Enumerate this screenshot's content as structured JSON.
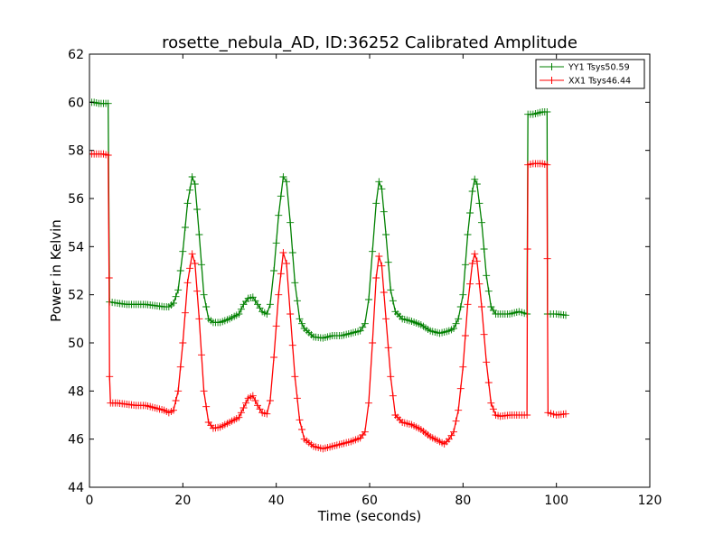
{
  "chart_data": {
    "type": "line",
    "title": "rosette_nebula_AD, ID:36252 Calibrated Amplitude",
    "xlabel": "Time (seconds)",
    "ylabel": "Power in Kelvin",
    "xlim": [
      0,
      120
    ],
    "ylim": [
      44,
      62
    ],
    "xticks": [
      0,
      20,
      40,
      60,
      80,
      100,
      120
    ],
    "yticks": [
      44,
      46,
      48,
      50,
      52,
      54,
      56,
      58,
      60,
      62
    ],
    "xtick_labels": [
      "0",
      "20",
      "40",
      "60",
      "80",
      "100",
      "120"
    ],
    "ytick_labels": [
      "44",
      "46",
      "48",
      "50",
      "52",
      "54",
      "56",
      "58",
      "60",
      "62"
    ],
    "grid": false,
    "legend_position": "top-right",
    "marker": "plus",
    "series": [
      {
        "name": "YY1 Tsys50.59",
        "color": "#008000",
        "segments": [
          [
            [
              0,
              60.0
            ],
            [
              1,
              60.0
            ],
            [
              2,
              59.95
            ],
            [
              3,
              59.95
            ],
            [
              4,
              59.95
            ],
            [
              4.3,
              51.7
            ],
            [
              6,
              51.65
            ],
            [
              8,
              51.6
            ],
            [
              10,
              51.6
            ],
            [
              12,
              51.6
            ],
            [
              14,
              51.55
            ],
            [
              16,
              51.5
            ],
            [
              17,
              51.5
            ],
            [
              18,
              51.65
            ],
            [
              19,
              52.2
            ],
            [
              20,
              53.8
            ],
            [
              21,
              55.8
            ],
            [
              22,
              56.9
            ],
            [
              22.6,
              56.6
            ],
            [
              23.5,
              54.5
            ],
            [
              24.5,
              52.0
            ],
            [
              25.5,
              51.0
            ],
            [
              26.5,
              50.85
            ],
            [
              28,
              50.85
            ],
            [
              30,
              51.0
            ],
            [
              32,
              51.2
            ],
            [
              33,
              51.6
            ],
            [
              34,
              51.85
            ],
            [
              35,
              51.9
            ],
            [
              36,
              51.6
            ],
            [
              37,
              51.3
            ],
            [
              38,
              51.2
            ],
            [
              38.7,
              51.6
            ],
            [
              39.5,
              53.0
            ],
            [
              40.5,
              55.3
            ],
            [
              41.5,
              56.9
            ],
            [
              42.2,
              56.7
            ],
            [
              43,
              55.0
            ],
            [
              44,
              52.5
            ],
            [
              45,
              51.0
            ],
            [
              46,
              50.6
            ],
            [
              48,
              50.25
            ],
            [
              50,
              50.2
            ],
            [
              52,
              50.3
            ],
            [
              54,
              50.3
            ],
            [
              56,
              50.4
            ],
            [
              58,
              50.5
            ],
            [
              59,
              50.8
            ],
            [
              59.8,
              51.8
            ],
            [
              60.6,
              53.8
            ],
            [
              61.4,
              55.8
            ],
            [
              62,
              56.7
            ],
            [
              62.6,
              56.4
            ],
            [
              63.5,
              54.5
            ],
            [
              64.5,
              52.2
            ],
            [
              65.5,
              51.3
            ],
            [
              67,
              51.0
            ],
            [
              69,
              50.9
            ],
            [
              71,
              50.75
            ],
            [
              73,
              50.5
            ],
            [
              75,
              50.4
            ],
            [
              77,
              50.5
            ],
            [
              78,
              50.6
            ],
            [
              79,
              51.0
            ],
            [
              80,
              52.0
            ],
            [
              81,
              54.5
            ],
            [
              82,
              56.3
            ],
            [
              82.5,
              56.8
            ],
            [
              83,
              56.6
            ],
            [
              84,
              55.0
            ],
            [
              85,
              52.8
            ],
            [
              86,
              51.5
            ],
            [
              87,
              51.2
            ],
            [
              88,
              51.2
            ],
            [
              90,
              51.2
            ],
            [
              92,
              51.3
            ],
            [
              93.7,
              51.2
            ],
            [
              93.9,
              59.5
            ],
            [
              95,
              59.5
            ],
            [
              97,
              59.6
            ],
            [
              98,
              59.6
            ],
            [
              98.1,
              51.2
            ],
            [
              100,
              51.2
            ],
            [
              102,
              51.15
            ]
          ]
        ]
      },
      {
        "name": "XX1 Tsys46.44",
        "color": "#ff0000",
        "segments": [
          [
            [
              0,
              57.85
            ],
            [
              1,
              57.85
            ],
            [
              2,
              57.85
            ],
            [
              3,
              57.85
            ],
            [
              4,
              57.8
            ],
            [
              4.2,
              52.7
            ],
            [
              4.3,
              48.6
            ],
            [
              4.5,
              47.5
            ],
            [
              6,
              47.5
            ],
            [
              8,
              47.45
            ],
            [
              10,
              47.4
            ],
            [
              12,
              47.4
            ],
            [
              14,
              47.3
            ],
            [
              16,
              47.2
            ],
            [
              17,
              47.1
            ],
            [
              18,
              47.2
            ],
            [
              19,
              48.0
            ],
            [
              20,
              50.0
            ],
            [
              21,
              52.5
            ],
            [
              22,
              53.7
            ],
            [
              22.6,
              53.3
            ],
            [
              23.5,
              51.0
            ],
            [
              24.5,
              48.0
            ],
            [
              25.5,
              46.7
            ],
            [
              26.5,
              46.45
            ],
            [
              28,
              46.5
            ],
            [
              30,
              46.7
            ],
            [
              32,
              46.9
            ],
            [
              33,
              47.3
            ],
            [
              34,
              47.7
            ],
            [
              35,
              47.8
            ],
            [
              36,
              47.4
            ],
            [
              37,
              47.1
            ],
            [
              38,
              47.05
            ],
            [
              38.7,
              47.6
            ],
            [
              39.5,
              49.4
            ],
            [
              40.5,
              52.0
            ],
            [
              41.5,
              53.75
            ],
            [
              42.2,
              53.3
            ],
            [
              43,
              51.2
            ],
            [
              44,
              48.6
            ],
            [
              45,
              46.8
            ],
            [
              46,
              46.0
            ],
            [
              48,
              45.7
            ],
            [
              50,
              45.6
            ],
            [
              52,
              45.7
            ],
            [
              54,
              45.8
            ],
            [
              56,
              45.9
            ],
            [
              58,
              46.05
            ],
            [
              59,
              46.3
            ],
            [
              59.8,
              47.5
            ],
            [
              60.6,
              50.0
            ],
            [
              61.4,
              52.7
            ],
            [
              62,
              53.6
            ],
            [
              62.6,
              53.2
            ],
            [
              63.5,
              51.0
            ],
            [
              64.5,
              48.6
            ],
            [
              65.5,
              47.0
            ],
            [
              67,
              46.7
            ],
            [
              69,
              46.6
            ],
            [
              71,
              46.4
            ],
            [
              73,
              46.1
            ],
            [
              75,
              45.9
            ],
            [
              76,
              45.8
            ],
            [
              77,
              46.0
            ],
            [
              78,
              46.3
            ],
            [
              79,
              47.2
            ],
            [
              80,
              49.0
            ],
            [
              81,
              51.6
            ],
            [
              82,
              53.3
            ],
            [
              82.5,
              53.7
            ],
            [
              83,
              53.4
            ],
            [
              84,
              51.5
            ],
            [
              85,
              49.2
            ],
            [
              86,
              47.5
            ],
            [
              87,
              47.0
            ],
            [
              88,
              46.95
            ],
            [
              90,
              47.0
            ],
            [
              92,
              47.0
            ],
            [
              93.7,
              47.0
            ],
            [
              93.8,
              53.9
            ],
            [
              93.9,
              57.4
            ],
            [
              95,
              57.45
            ],
            [
              97,
              57.45
            ],
            [
              98,
              57.4
            ],
            [
              98.05,
              53.5
            ],
            [
              98.2,
              47.1
            ],
            [
              100,
              47.0
            ],
            [
              102,
              47.05
            ]
          ]
        ]
      }
    ]
  }
}
